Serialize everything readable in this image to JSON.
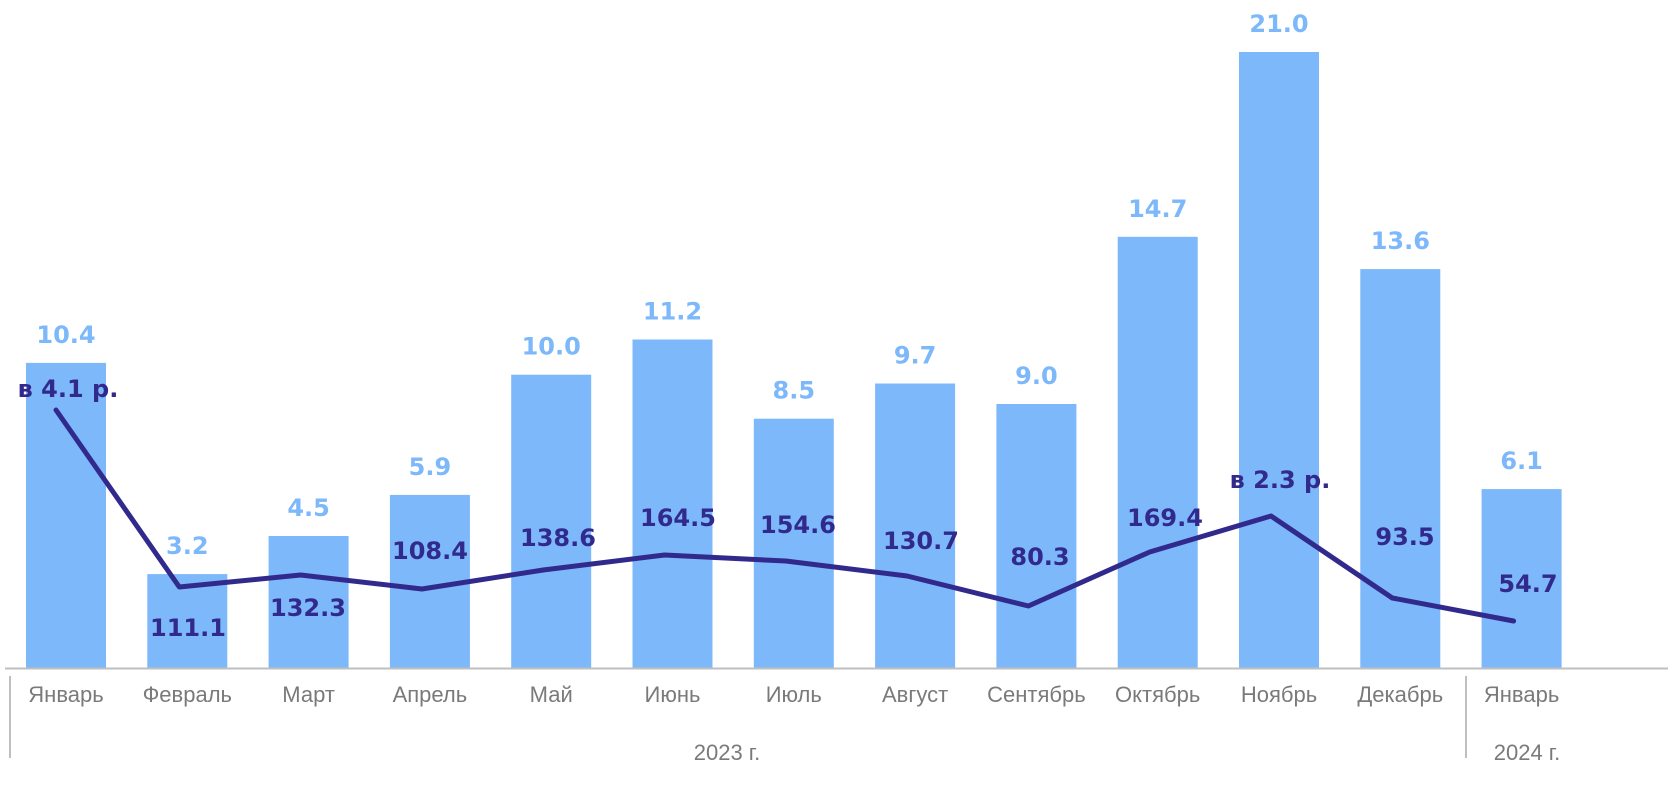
{
  "colors": {
    "bar": "#7cb8fa",
    "bar_label": "#7cb8fa",
    "line": "#312a8c",
    "line_label": "#312a8c",
    "axis": "#bfbfbf",
    "tick_text": "#7a7a7a"
  },
  "chart_data": {
    "type": "bar",
    "categories": [
      "Январь",
      "Февраль",
      "Март",
      "Апрель",
      "Май",
      "Июнь",
      "Июль",
      "Август",
      "Сентябрь",
      "Октябрь",
      "Ноябрь",
      "Декабрь",
      "Январь"
    ],
    "groups": [
      {
        "label": "2023 г.",
        "count": 12
      },
      {
        "label": "2024 г.",
        "count": 1
      }
    ],
    "bar_ylim": [
      0,
      21.0
    ],
    "series": [
      {
        "type": "bar",
        "values": [
          10.4,
          3.2,
          4.5,
          5.9,
          10.0,
          11.2,
          8.5,
          9.7,
          9.0,
          14.7,
          21.0,
          13.6,
          6.1
        ],
        "labels": [
          "10.4",
          "3.2",
          "4.5",
          "5.9",
          "10.0",
          "11.2",
          "8.5",
          "9.7",
          "9.0",
          "14.7",
          "21.0",
          "13.6",
          "6.1"
        ]
      },
      {
        "type": "line",
        "values": [
          410,
          111.1,
          132.3,
          108.4,
          138.6,
          164.5,
          154.6,
          130.7,
          80.3,
          169.4,
          230,
          93.5,
          54.7
        ],
        "labels": [
          "в 4.1 р.",
          "111.1",
          "132.3",
          "108.4",
          "138.6",
          "164.5",
          "154.6",
          "130.7",
          "80.3",
          "169.4",
          "в 2.3 р.",
          "93.5",
          "54.7"
        ]
      }
    ],
    "grid": false,
    "legend": "none"
  }
}
